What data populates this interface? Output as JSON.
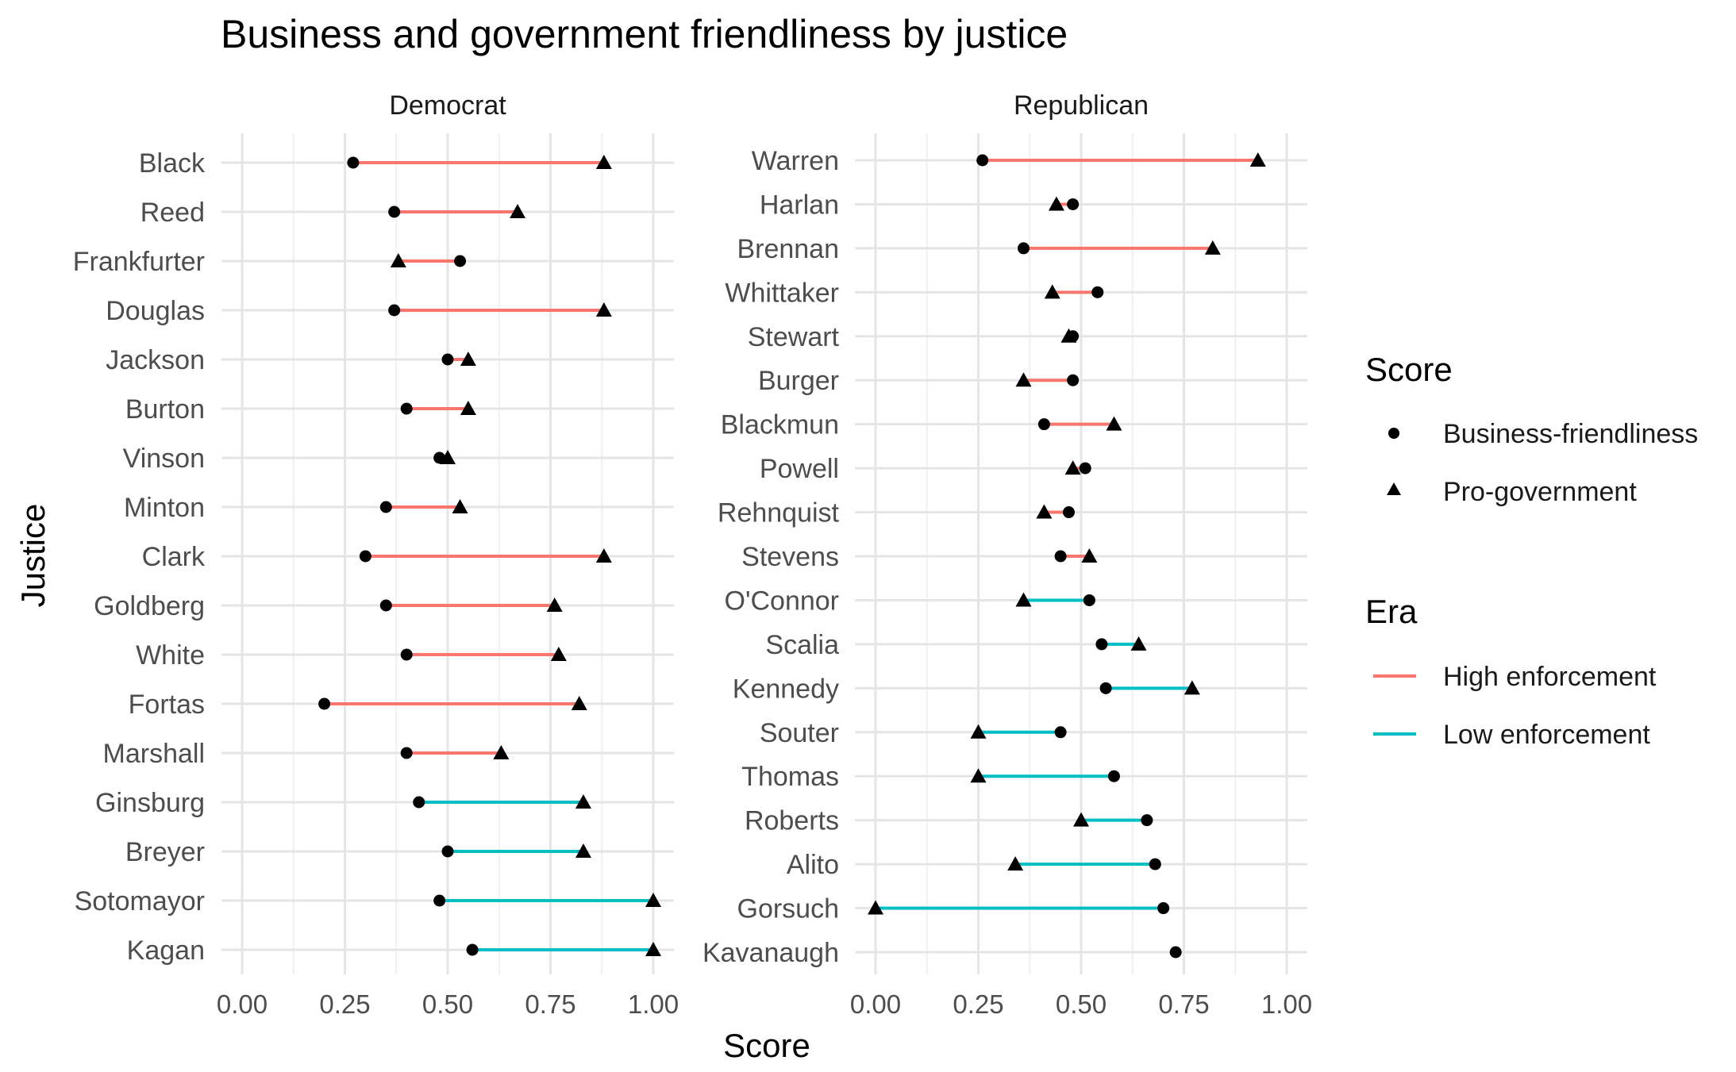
{
  "chart_data": {
    "type": "dumbbell",
    "title": "Business and government friendliness by justice",
    "xlabel": "Score",
    "ylabel": "Justice",
    "xlim": [
      0,
      1
    ],
    "xticks": [
      "0.00",
      "0.25",
      "0.50",
      "0.75",
      "1.00"
    ],
    "xtick_values": [
      0,
      0.25,
      0.5,
      0.75,
      1
    ],
    "grid": true,
    "legend_placement": "right",
    "legends": {
      "score": {
        "title": "Score",
        "items": [
          {
            "label": "Business-friendliness",
            "shape": "circle"
          },
          {
            "label": "Pro-government",
            "shape": "triangle"
          }
        ]
      },
      "era": {
        "title": "Era",
        "items": [
          {
            "label": "High enforcement",
            "color": "#F8766D"
          },
          {
            "label": "Low enforcement",
            "color": "#00BFC4"
          }
        ]
      }
    },
    "panels": [
      {
        "name": "Democrat",
        "justices": [
          {
            "name": "Black",
            "business": 0.27,
            "government": 0.88,
            "era": "High enforcement"
          },
          {
            "name": "Reed",
            "business": 0.37,
            "government": 0.67,
            "era": "High enforcement"
          },
          {
            "name": "Frankfurter",
            "business": 0.53,
            "government": 0.38,
            "era": "High enforcement"
          },
          {
            "name": "Douglas",
            "business": 0.37,
            "government": 0.88,
            "era": "High enforcement"
          },
          {
            "name": "Jackson",
            "business": 0.5,
            "government": 0.55,
            "era": "High enforcement"
          },
          {
            "name": "Burton",
            "business": 0.4,
            "government": 0.55,
            "era": "High enforcement"
          },
          {
            "name": "Vinson",
            "business": 0.48,
            "government": 0.5,
            "era": "High enforcement"
          },
          {
            "name": "Minton",
            "business": 0.35,
            "government": 0.53,
            "era": "High enforcement"
          },
          {
            "name": "Clark",
            "business": 0.3,
            "government": 0.88,
            "era": "High enforcement"
          },
          {
            "name": "Goldberg",
            "business": 0.35,
            "government": 0.76,
            "era": "High enforcement"
          },
          {
            "name": "White",
            "business": 0.4,
            "government": 0.77,
            "era": "High enforcement"
          },
          {
            "name": "Fortas",
            "business": 0.2,
            "government": 0.82,
            "era": "High enforcement"
          },
          {
            "name": "Marshall",
            "business": 0.4,
            "government": 0.63,
            "era": "High enforcement"
          },
          {
            "name": "Ginsburg",
            "business": 0.43,
            "government": 0.83,
            "era": "Low enforcement"
          },
          {
            "name": "Breyer",
            "business": 0.5,
            "government": 0.83,
            "era": "Low enforcement"
          },
          {
            "name": "Sotomayor",
            "business": 0.48,
            "government": 1.0,
            "era": "Low enforcement"
          },
          {
            "name": "Kagan",
            "business": 0.56,
            "government": 1.0,
            "era": "Low enforcement"
          }
        ]
      },
      {
        "name": "Republican",
        "justices": [
          {
            "name": "Warren",
            "business": 0.26,
            "government": 0.93,
            "era": "High enforcement"
          },
          {
            "name": "Harlan",
            "business": 0.48,
            "government": 0.44,
            "era": "High enforcement"
          },
          {
            "name": "Brennan",
            "business": 0.36,
            "government": 0.82,
            "era": "High enforcement"
          },
          {
            "name": "Whittaker",
            "business": 0.54,
            "government": 0.43,
            "era": "High enforcement"
          },
          {
            "name": "Stewart",
            "business": 0.48,
            "government": 0.47,
            "era": "High enforcement"
          },
          {
            "name": "Burger",
            "business": 0.48,
            "government": 0.36,
            "era": "High enforcement"
          },
          {
            "name": "Blackmun",
            "business": 0.41,
            "government": 0.58,
            "era": "High enforcement"
          },
          {
            "name": "Powell",
            "business": 0.51,
            "government": 0.48,
            "era": "High enforcement"
          },
          {
            "name": "Rehnquist",
            "business": 0.47,
            "government": 0.41,
            "era": "High enforcement"
          },
          {
            "name": "Stevens",
            "business": 0.45,
            "government": 0.52,
            "era": "High enforcement"
          },
          {
            "name": "O'Connor",
            "business": 0.52,
            "government": 0.36,
            "era": "Low enforcement"
          },
          {
            "name": "Scalia",
            "business": 0.55,
            "government": 0.64,
            "era": "Low enforcement"
          },
          {
            "name": "Kennedy",
            "business": 0.56,
            "government": 0.77,
            "era": "Low enforcement"
          },
          {
            "name": "Souter",
            "business": 0.45,
            "government": 0.25,
            "era": "Low enforcement"
          },
          {
            "name": "Thomas",
            "business": 0.58,
            "government": 0.25,
            "era": "Low enforcement"
          },
          {
            "name": "Roberts",
            "business": 0.66,
            "government": 0.5,
            "era": "Low enforcement"
          },
          {
            "name": "Alito",
            "business": 0.68,
            "government": 0.34,
            "era": "Low enforcement"
          },
          {
            "name": "Gorsuch",
            "business": 0.7,
            "government": 0.0,
            "era": "Low enforcement"
          },
          {
            "name": "Kavanaugh",
            "business": 0.73,
            "government": null,
            "era": "Low enforcement"
          }
        ]
      }
    ]
  }
}
